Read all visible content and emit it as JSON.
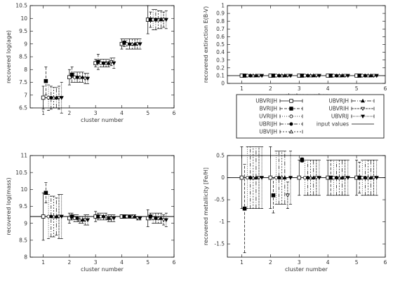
{
  "legend": {
    "entries": [
      {
        "label": "UBVRIJH",
        "marker": "open-square",
        "dash": "none"
      },
      {
        "label": "BVRIJH",
        "marker": "filled-square",
        "dash": "4,2"
      },
      {
        "label": "UVRIJH",
        "marker": "open-circle",
        "dash": "1,2"
      },
      {
        "label": "UBRIJH",
        "marker": "filled-circle",
        "dash": "5,2,1,2"
      },
      {
        "label": "UBVIJH",
        "marker": "open-triangle",
        "dash": "2,2"
      },
      {
        "label": "UBVRJH",
        "marker": "filled-triangle",
        "dash": "6,2,1,2"
      },
      {
        "label": "UBVRIH",
        "marker": "open-down-triangle",
        "dash": "3,1"
      },
      {
        "label": "UBVRIJ",
        "marker": "filled-down-triangle",
        "dash": "1,1"
      },
      {
        "label": "input values",
        "marker": "none",
        "dash": "none"
      }
    ]
  },
  "chart_data": [
    {
      "type": "scatter",
      "title": "",
      "xlabel": "cluster number",
      "ylabel": "recovered log(age)",
      "xlim": [
        0.5,
        6
      ],
      "ylim": [
        6.5,
        10.5
      ],
      "xticks": [
        1,
        2,
        3,
        4,
        5,
        6
      ],
      "yticks": [
        6.5,
        7,
        7.5,
        8,
        8.5,
        9,
        9.5,
        10,
        10.5
      ],
      "input_values": [
        {
          "x": 1,
          "y": 6.9
        },
        {
          "x": 2,
          "y": 7.7
        },
        {
          "x": 3,
          "y": 8.3
        },
        {
          "x": 4,
          "y": 9.0
        },
        {
          "x": 5,
          "y": 10.0
        }
      ],
      "series": [
        {
          "name": "UBVRIJH",
          "x": [
            1,
            2,
            3,
            4,
            5
          ],
          "y": [
            6.9,
            7.7,
            8.25,
            9.0,
            9.95
          ],
          "err": [
            0.45,
            0.3,
            0.15,
            0.2,
            0.55
          ]
        },
        {
          "name": "BVRIJH",
          "x": [
            1.1,
            2.1,
            3.1,
            4.1,
            5.1
          ],
          "y": [
            7.55,
            7.8,
            8.3,
            9.05,
            9.95
          ],
          "err": [
            0.55,
            0.3,
            0.3,
            0.15,
            0.3
          ]
        },
        {
          "name": "UVRIJH",
          "x": [
            1.2,
            2.2,
            3.2,
            4.2,
            5.2
          ],
          "y": [
            6.9,
            7.7,
            8.25,
            9.0,
            9.95
          ],
          "err": [
            0.5,
            0.2,
            0.15,
            0.2,
            0.4
          ]
        },
        {
          "name": "UBRIJH",
          "x": [
            1.3,
            2.3,
            3.3,
            4.3,
            5.3
          ],
          "y": [
            6.9,
            7.7,
            8.25,
            9.0,
            9.95
          ],
          "err": [
            0.45,
            0.2,
            0.15,
            0.2,
            0.4
          ]
        },
        {
          "name": "UBVIJH",
          "x": [
            1.4,
            2.4,
            3.4,
            4.4,
            5.4
          ],
          "y": [
            6.9,
            7.7,
            8.25,
            9.0,
            9.95
          ],
          "err": [
            0.4,
            0.2,
            0.15,
            0.2,
            0.35
          ]
        },
        {
          "name": "UBVRJH",
          "x": [
            1.5,
            2.5,
            3.5,
            4.5,
            5.5
          ],
          "y": [
            6.9,
            7.7,
            8.25,
            9.0,
            9.95
          ],
          "err": [
            0.4,
            0.2,
            0.15,
            0.2,
            0.35
          ]
        },
        {
          "name": "UBVRIH",
          "x": [
            1.6,
            2.6,
            3.6,
            4.6,
            5.6
          ],
          "y": [
            6.9,
            7.65,
            8.3,
            9.0,
            9.95
          ],
          "err": [
            0.45,
            0.2,
            0.15,
            0.2,
            0.3
          ]
        },
        {
          "name": "UBVRIJ",
          "x": [
            1.7,
            2.7,
            3.7,
            4.7,
            5.7
          ],
          "y": [
            6.9,
            7.65,
            8.25,
            9.0,
            9.95
          ],
          "err": [
            0.6,
            0.2,
            0.2,
            0.2,
            0.35
          ]
        }
      ]
    },
    {
      "type": "scatter",
      "title": "",
      "xlabel": "cluster number",
      "ylabel": "recovered extinction E(B-V)",
      "xlim": [
        0.5,
        6
      ],
      "ylim": [
        0,
        1
      ],
      "xticks": [
        1,
        2,
        3,
        4,
        5,
        6
      ],
      "yticks": [
        0,
        0.1,
        0.2,
        0.3,
        0.4,
        0.5,
        0.6,
        0.7,
        0.8,
        0.9,
        1
      ],
      "input_values": [
        {
          "x": 1,
          "y": 0.1
        },
        {
          "x": 2,
          "y": 0.1
        },
        {
          "x": 3,
          "y": 0.1
        },
        {
          "x": 4,
          "y": 0.1
        },
        {
          "x": 5,
          "y": 0.1
        }
      ],
      "series": [
        {
          "name": "UBVRIJH",
          "x": [
            1,
            2,
            3,
            4,
            5
          ],
          "y": [
            0.1,
            0.1,
            0.1,
            0.1,
            0.1
          ],
          "err": [
            0.01,
            0.01,
            0.01,
            0.01,
            0.01
          ]
        },
        {
          "name": "BVRIJH",
          "x": [
            1.1,
            2.1,
            3.1,
            4.1,
            5.1
          ],
          "y": [
            0.1,
            0.1,
            0.1,
            0.1,
            0.1
          ],
          "err": [
            0.01,
            0.01,
            0.01,
            0.01,
            0.01
          ]
        },
        {
          "name": "UVRIJH",
          "x": [
            1.2,
            2.2,
            3.2,
            4.2,
            5.2
          ],
          "y": [
            0.1,
            0.1,
            0.1,
            0.1,
            0.1
          ],
          "err": [
            0.01,
            0.01,
            0.01,
            0.01,
            0.01
          ]
        },
        {
          "name": "UBRIJH",
          "x": [
            1.3,
            2.3,
            3.3,
            4.3,
            5.3
          ],
          "y": [
            0.1,
            0.1,
            0.1,
            0.1,
            0.1
          ],
          "err": [
            0.01,
            0.01,
            0.01,
            0.01,
            0.01
          ]
        },
        {
          "name": "UBVIJH",
          "x": [
            1.4,
            2.4,
            3.4,
            4.4,
            5.4
          ],
          "y": [
            0.1,
            0.1,
            0.1,
            0.1,
            0.1
          ],
          "err": [
            0.01,
            0.01,
            0.01,
            0.01,
            0.01
          ]
        },
        {
          "name": "UBVRJH",
          "x": [
            1.5,
            2.5,
            3.5,
            4.5,
            5.5
          ],
          "y": [
            0.1,
            0.1,
            0.1,
            0.1,
            0.1
          ],
          "err": [
            0.01,
            0.01,
            0.01,
            0.01,
            0.01
          ]
        },
        {
          "name": "UBVRIH",
          "x": [
            1.6,
            2.6,
            3.6,
            4.6,
            5.6
          ],
          "y": [
            0.1,
            0.1,
            0.1,
            0.1,
            0.1
          ],
          "err": [
            0.01,
            0.01,
            0.01,
            0.01,
            0.01
          ]
        },
        {
          "name": "UBVRIJ",
          "x": [
            1.7,
            2.7,
            3.7,
            4.7,
            5.7
          ],
          "y": [
            0.1,
            0.1,
            0.1,
            0.1,
            0.1
          ],
          "err": [
            0.01,
            0.01,
            0.01,
            0.01,
            0.01
          ]
        }
      ]
    },
    {
      "type": "scatter",
      "title": "",
      "xlabel": "cluster number",
      "ylabel": "recovered log(mass)",
      "xlim": [
        0.5,
        6
      ],
      "ylim": [
        8,
        11
      ],
      "xticks": [
        1,
        2,
        3,
        4,
        5,
        6
      ],
      "yticks": [
        8,
        8.5,
        9,
        9.5,
        10,
        10.5,
        11
      ],
      "input_values": [
        {
          "x": 0.5,
          "y": 9.2
        },
        {
          "x": 6,
          "y": 9.2
        }
      ],
      "series": [
        {
          "name": "UBVRIJH",
          "x": [
            1,
            2,
            3,
            4,
            5
          ],
          "y": [
            9.2,
            9.15,
            9.2,
            9.2,
            9.15
          ],
          "err": [
            0.7,
            0.15,
            0.15,
            0.05,
            0.25
          ]
        },
        {
          "name": "BVRIJH",
          "x": [
            1.1,
            2.1,
            3.1,
            4.1,
            5.1
          ],
          "y": [
            9.9,
            9.2,
            9.2,
            9.2,
            9.2
          ],
          "err": [
            0.3,
            0.1,
            0.1,
            0.05,
            0.1
          ]
        },
        {
          "name": "UVRIJH",
          "x": [
            1.2,
            2.2,
            3.2,
            4.2,
            5.2
          ],
          "y": [
            9.2,
            9.15,
            9.2,
            9.2,
            9.15
          ],
          "err": [
            0.65,
            0.1,
            0.1,
            0.05,
            0.15
          ]
        },
        {
          "name": "UBRIJH",
          "x": [
            1.3,
            2.3,
            3.3,
            4.3,
            5.3
          ],
          "y": [
            9.2,
            9.15,
            9.2,
            9.2,
            9.15
          ],
          "err": [
            0.6,
            0.1,
            0.1,
            0.05,
            0.15
          ]
        },
        {
          "name": "UBVIJH",
          "x": [
            1.4,
            2.4,
            3.4,
            4.4,
            5.4
          ],
          "y": [
            9.2,
            9.1,
            9.2,
            9.2,
            9.15
          ],
          "err": [
            0.6,
            0.1,
            0.1,
            0.05,
            0.15
          ]
        },
        {
          "name": "UBVRJH",
          "x": [
            1.5,
            2.5,
            3.5,
            4.5,
            5.5
          ],
          "y": [
            9.2,
            9.1,
            9.15,
            9.2,
            9.15
          ],
          "err": [
            0.55,
            0.1,
            0.1,
            0.05,
            0.15
          ]
        },
        {
          "name": "UBVRIH",
          "x": [
            1.6,
            2.6,
            3.6,
            4.6,
            5.6
          ],
          "y": [
            9.2,
            9.1,
            9.15,
            9.15,
            9.1
          ],
          "err": [
            0.65,
            0.15,
            0.1,
            0.05,
            0.15
          ]
        },
        {
          "name": "UBVRIJ",
          "x": [
            1.7,
            2.7,
            3.7,
            4.7,
            5.7
          ],
          "y": [
            9.2,
            9.1,
            9.15,
            9.15,
            9.1
          ],
          "err": [
            0.65,
            0.15,
            0.1,
            0.05,
            0.2
          ]
        }
      ]
    },
    {
      "type": "scatter",
      "title": "",
      "xlabel": "cluster number",
      "ylabel": "recovered metallicity [Fe/H]",
      "xlim": [
        0.5,
        6
      ],
      "ylim": [
        -1.8,
        0.5
      ],
      "xticks": [
        1,
        2,
        3,
        4,
        5,
        6
      ],
      "yticks": [
        -1.5,
        -1,
        -0.5,
        0,
        0.5
      ],
      "input_values": [
        {
          "x": 0.5,
          "y": 0
        },
        {
          "x": 6,
          "y": 0
        }
      ],
      "series": [
        {
          "name": "UBVRIJH",
          "x": [
            1,
            2,
            3,
            4,
            5
          ],
          "y": [
            0,
            0,
            0,
            0,
            0
          ],
          "err": [
            0.7,
            0.7,
            0.4,
            0.4,
            0.4
          ]
        },
        {
          "name": "BVRIJH",
          "x": [
            1.1,
            2.1,
            3.1,
            4.1,
            5.1
          ],
          "y": [
            -0.7,
            -0.4,
            0.4,
            0,
            0
          ],
          "err": [
            1.0,
            0.4,
            0.05,
            0.4,
            0.35
          ]
        },
        {
          "name": "UVRIJH",
          "x": [
            1.2,
            2.2,
            3.2,
            4.2,
            5.2
          ],
          "y": [
            0,
            0,
            0,
            0,
            0
          ],
          "err": [
            0.7,
            0.6,
            0.4,
            0.4,
            0.4
          ]
        },
        {
          "name": "UBRIJH",
          "x": [
            1.3,
            2.3,
            3.3,
            4.3,
            5.3
          ],
          "y": [
            0,
            0,
            0,
            0,
            0
          ],
          "err": [
            0.7,
            0.6,
            0.4,
            0.4,
            0.4
          ]
        },
        {
          "name": "UBVIJH",
          "x": [
            1.4,
            2.4,
            3.4,
            4.4,
            5.4
          ],
          "y": [
            0,
            0,
            0,
            0,
            0
          ],
          "err": [
            0.7,
            0.6,
            0.4,
            0.4,
            0.4
          ]
        },
        {
          "name": "UBVRJH",
          "x": [
            1.5,
            2.5,
            3.5,
            4.5,
            5.5
          ],
          "y": [
            0,
            0,
            0,
            0,
            0
          ],
          "err": [
            0.7,
            0.6,
            0.4,
            0.4,
            0.4
          ]
        },
        {
          "name": "UBVRIH",
          "x": [
            1.6,
            2.6,
            3.6,
            4.6,
            5.6
          ],
          "y": [
            0,
            -0.4,
            0,
            0,
            0
          ],
          "err": [
            0.7,
            0.3,
            0.4,
            0.4,
            0.4
          ]
        },
        {
          "name": "UBVRIJ",
          "x": [
            1.7,
            2.7,
            3.7,
            4.7,
            5.7
          ],
          "y": [
            0,
            0,
            0,
            0,
            0
          ],
          "err": [
            0.7,
            0.6,
            0.4,
            0.4,
            0.4
          ]
        }
      ]
    }
  ]
}
